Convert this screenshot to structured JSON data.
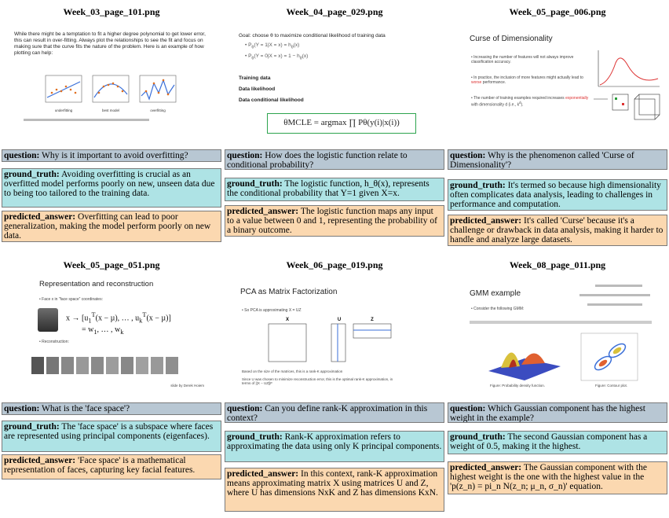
{
  "cells": [
    {
      "title": "Week_03_page_101.png",
      "question_label": "question:",
      "question": "Why is it important to avoid overfitting?",
      "gt_label": "ground_truth:",
      "ground_truth": "Avoiding overfitting is crucial as an overfitted model performs poorly on new, unseen data due to being too tailored to the training data.",
      "pa_label": "predicted_answer:",
      "predicted_answer": "Overfitting can lead to poor generalization, making the model perform poorly on new data.",
      "slide": {
        "bullet": "While there might be a temptation to fit a higher degree polynomial to get lower error, this can result in over-fitting. Always plot the relationships to see the fit and focus on making sure that the curve fits the nature of the problem. Here is an example of how plotting can help:",
        "plot_labels": [
          "underfitting",
          "best model",
          "overfitting"
        ]
      }
    },
    {
      "title": "Week_04_page_029.png",
      "question_label": "question:",
      "question": "How does the logistic function relate to conditional probability?",
      "gt_label": "ground_truth:",
      "ground_truth": "The logistic function, h_θ(x), represents the conditional probability that Y=1 given X=x.",
      "pa_label": "predicted_answer:",
      "predicted_answer": "The logistic function maps any input to a value between 0 and 1, representing the probability of a binary outcome.",
      "slide": {
        "goal": "Goal: choose θ to maximize conditional likelihood of training data",
        "training": "Training data",
        "likelihood": "Data likelihood",
        "cond_likelihood": "Data conditional likelihood",
        "mcle": "θMCLE = argmax ∏ Pθ(y(i)|x(i))"
      }
    },
    {
      "title": "Week_05_page_006.png",
      "question_label": "question:",
      "question": "Why is the phenomenon called 'Curse of Dimensionality'?",
      "gt_label": "ground_truth:",
      "ground_truth": "It's termed so because high dimensionality often complicates data analysis, leading to challenges in performance and computation.",
      "pa_label": "predicted_answer:",
      "predicted_answer": "It's called 'Curse' because it's a challenge or drawback in data analysis, making it harder to handle and analyze large datasets.",
      "slide": {
        "heading": "Curse of Dimensionality",
        "b1": "Increasing the number of features will not always improve classification accuracy.",
        "b2a": "In practice, the inclusion of more features might actually lead to ",
        "b2b": "worse",
        "b2c": " performance.",
        "b3a": "The number of training examples required increases ",
        "b3b": "exponentially",
        "b3c": " with dimensionality d (i.e., k",
        "b3d": "d",
        "b3e": ")."
      }
    },
    {
      "title": "Week_05_page_051.png",
      "question_label": "question:",
      "question": "What is the 'face space'?",
      "gt_label": "ground_truth:",
      "ground_truth": "The 'face space' is a subspace where faces are represented using principal components (eigenfaces).",
      "pa_label": "predicted_answer:",
      "predicted_answer": "'Face space' is a mathematical representation of faces, capturing key facial features.",
      "slide": {
        "heading": "Representation and reconstruction",
        "b1": "Face x in “face space” coordinates:",
        "b2": "Reconstruction:",
        "credit": "slide by Derek Hoiem"
      }
    },
    {
      "title": "Week_06_page_019.png",
      "question_label": "question:",
      "question": "Can you define rank-K approximation in this context?",
      "gt_label": "ground_truth:",
      "ground_truth": "Rank-K approximation refers to approximating the data using only K principal components.",
      "pa_label": "predicted_answer:",
      "predicted_answer": "In this context, rank-K approximation means approximating matrix X using matrices U and Z, where U has dimensions NxK and Z has dimensions KxN.",
      "slide": {
        "heading": "PCA as Matrix Factorization",
        "b1": "So PCA is approximating X = UZ",
        "labels": [
          "X",
          "U",
          "Z"
        ],
        "note1": "Based on the size of the matrices, this is a rank-K approximation",
        "note2": "Since U was chosen to minimize reconstruction error, this is the optimal rank-K approximation, in terms of ||X − UZ||F"
      }
    },
    {
      "title": "Week_08_page_011.png",
      "question_label": "question:",
      "question": "Which Gaussian component has the highest weight in the example?",
      "gt_label": "ground_truth:",
      "ground_truth": "The second Gaussian component has a weight of 0.5, making it the highest.",
      "pa_label": "predicted_answer:",
      "predicted_answer": "The Gaussian component with the highest weight is the one with the highest value in the 'p(z_n) = pi_n N(z_n; μ_n, σ_n)' equation.",
      "slide": {
        "heading": "GMM example",
        "b1": "Consider the following GMM:",
        "cap1": "Figure: Probability density function.",
        "cap2": "Figure: Contour plot."
      }
    }
  ]
}
